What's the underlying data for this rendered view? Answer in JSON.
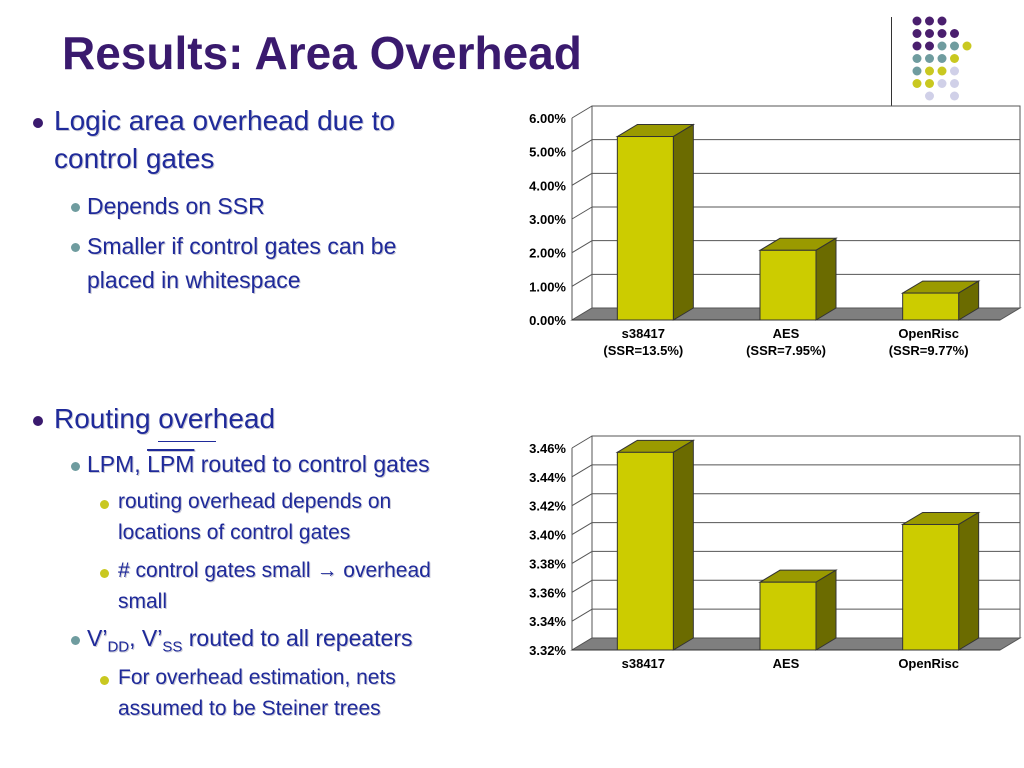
{
  "slide": {
    "title": "Results: Area Overhead",
    "bullets": {
      "b1": "Logic area overhead due to",
      "b1b": "control gates",
      "b2": "Depends on SSR",
      "b3": "Smaller if control gates can be",
      "b3b": "placed in whitespace",
      "b4": "Routing overhead",
      "b5a": "LPM,",
      "b5b": "LPM",
      "b5c": "routed to control gates",
      "b6": "routing overhead depends on",
      "b6b": "locations of control gates",
      "b7a": "# control gates small",
      "b7b": "overhead",
      "b7c": "small",
      "b8a": "V’",
      "b8b": "DD",
      "b8c": ", V’",
      "b8d": "SS",
      "b8e": "routed to all repeaters",
      "b9": "For overhead estimation, nets",
      "b9b": "assumed to be Steiner trees",
      "arrow": "→"
    }
  },
  "colors": {
    "title": "#3a1a6e",
    "text": "#1f2a9a",
    "bullet_l1": "#3a1a6e",
    "bullet_l2": "#6f9c9f",
    "bullet_l3": "#c9c820",
    "bar_front": "#cccc00",
    "bar_side": "#6b6b00",
    "bar_top": "#9a9a00",
    "floor": "#7f7f7f"
  },
  "chart_data": [
    {
      "type": "bar",
      "categories": [
        "s38417",
        "AES",
        "OpenRisc"
      ],
      "sublabels": [
        "(SSR=13.5%)",
        "(SSR=7.95%)",
        "(SSR=9.77%)"
      ],
      "values": [
        5.45,
        2.07,
        0.8
      ],
      "ylim": [
        0,
        6
      ],
      "yticks": [
        "0.00%",
        "1.00%",
        "2.00%",
        "3.00%",
        "4.00%",
        "5.00%",
        "6.00%"
      ],
      "grid": true
    },
    {
      "type": "bar",
      "categories": [
        "s38417",
        "AES",
        "OpenRisc"
      ],
      "values": [
        3.457,
        3.367,
        3.407
      ],
      "ylim": [
        3.32,
        3.46
      ],
      "yticks": [
        "3.32%",
        "3.34%",
        "3.36%",
        "3.38%",
        "3.40%",
        "3.42%",
        "3.44%",
        "3.46%"
      ],
      "grid": true
    }
  ]
}
